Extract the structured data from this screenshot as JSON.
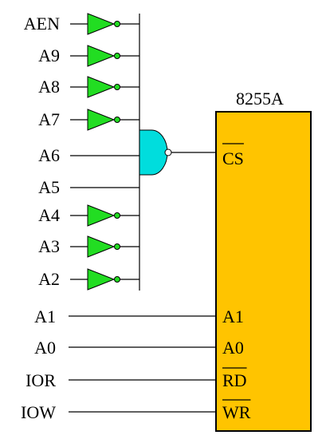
{
  "chip": {
    "name": "8255A"
  },
  "decoder_inputs": [
    {
      "label": "AEN",
      "inverted": true
    },
    {
      "label": "A9",
      "inverted": true
    },
    {
      "label": "A8",
      "inverted": true
    },
    {
      "label": "A7",
      "inverted": true
    },
    {
      "label": "A6",
      "inverted": false
    },
    {
      "label": "A5",
      "inverted": false
    },
    {
      "label": "A4",
      "inverted": true
    },
    {
      "label": "A3",
      "inverted": true
    },
    {
      "label": "A2",
      "inverted": true
    }
  ],
  "direct_signals": [
    {
      "label": "A1",
      "pin": "A1",
      "active_low": false
    },
    {
      "label": "A0",
      "pin": "A0",
      "active_low": false
    },
    {
      "label": "IOR",
      "pin": "RD",
      "active_low": true
    },
    {
      "label": "IOW",
      "pin": "WR",
      "active_low": true
    }
  ],
  "select_pin": {
    "label": "CS",
    "active_low": true
  },
  "colors": {
    "inverter": "#22dd22",
    "nand_gate": "#00dddd",
    "chip_body": "#ffc400"
  }
}
